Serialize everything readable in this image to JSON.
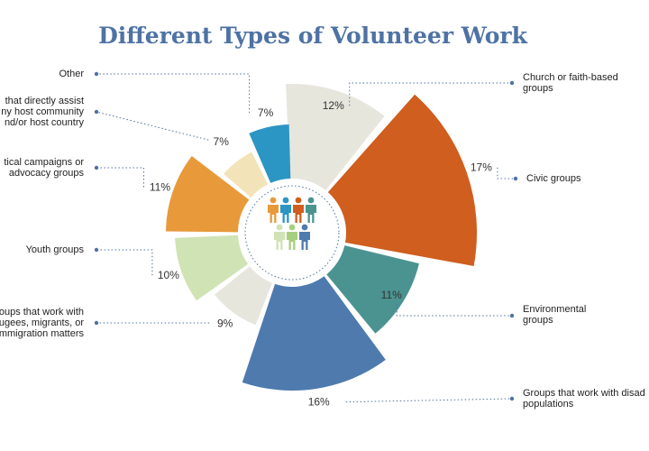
{
  "chart_data": {
    "type": "pie",
    "title": "Different Types of Volunteer Work",
    "center_icon": "people-group-icon",
    "slices": [
      {
        "label": "Church or faith-based groups",
        "value": 12,
        "display": "12%",
        "color": "#e7e6dd"
      },
      {
        "label": "Civic groups",
        "value": 17,
        "display": "17%",
        "color": "#cf5e1f"
      },
      {
        "label": "Environmental groups",
        "value": 11,
        "display": "11%",
        "color": "#4b9391"
      },
      {
        "label": "Groups that work with disadvantaged populations",
        "value": 16,
        "display": "16%",
        "color": "#4e7aae"
      },
      {
        "label": "Groups that work with refugees, migrants, or immigration matters",
        "value": 9,
        "display": "9%",
        "color": "#e7e6dd"
      },
      {
        "label": "Youth groups",
        "value": 10,
        "display": "10%",
        "color": "#cfe3b4"
      },
      {
        "label": "Political campaigns or advocacy groups",
        "value": 11,
        "display": "11%",
        "color": "#e8993a"
      },
      {
        "label": "Groups that directly assist my host community and/or host country",
        "value": 7,
        "display": "7%",
        "color": "#f3e3b8"
      },
      {
        "label": "Other",
        "value": 7,
        "display": "7%",
        "color": "#2b96c4"
      }
    ],
    "label_lines": [
      [
        "Church or faith-based",
        "groups"
      ],
      [
        "Civic groups"
      ],
      [
        "Environmental",
        "groups"
      ],
      [
        "Groups that work with disad",
        "populations"
      ],
      [
        "roups that work with",
        "ugees, migrants, or",
        "mmigration matters"
      ],
      [
        "Youth groups"
      ],
      [
        "tical campaigns or",
        "advocacy groups"
      ],
      [
        "that directly assist",
        "ny host community",
        "nd/or host country"
      ],
      [
        "Other"
      ]
    ],
    "people_colors": [
      "#e8993a",
      "#2b96c4",
      "#cf5e1f",
      "#4b9391",
      "#cfe3b4",
      "#a8cf7e",
      "#4e7aae"
    ]
  }
}
